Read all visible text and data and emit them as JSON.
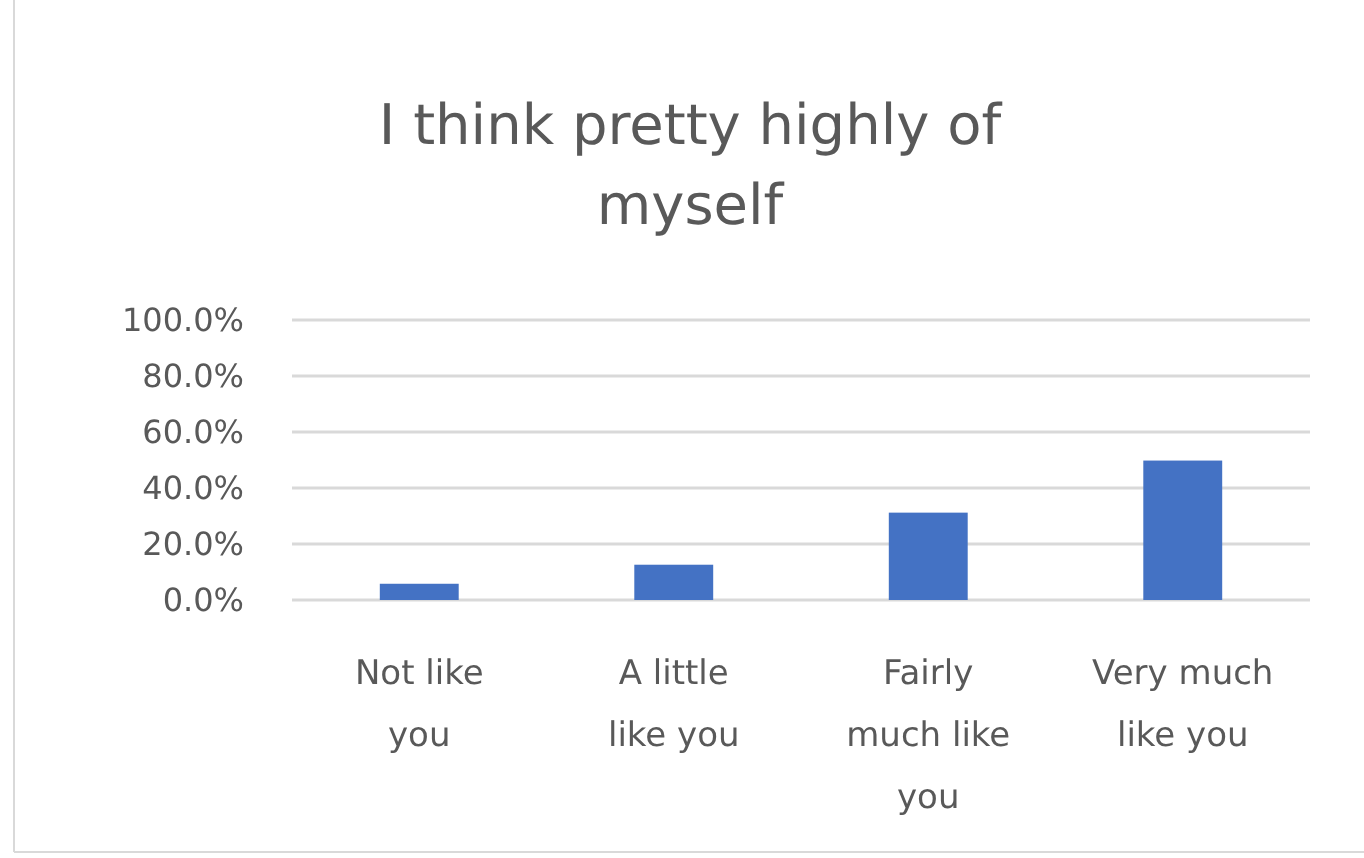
{
  "chart_data": {
    "type": "bar",
    "title": "I think pretty highly of myself",
    "categories": [
      "Not like you",
      "A little like you",
      "Fairly much like you",
      "Very much like you"
    ],
    "values": [
      5.8,
      12.6,
      31.2,
      49.8
    ],
    "color": "#4472c4",
    "ylim": [
      0,
      100
    ],
    "yticks": [
      {
        "value": 0,
        "label": "0.0%"
      },
      {
        "value": 20,
        "label": "20.0%"
      },
      {
        "value": 40,
        "label": "40.0%"
      },
      {
        "value": 60,
        "label": "60.0%"
      },
      {
        "value": 80,
        "label": "80.0%"
      },
      {
        "value": 100,
        "label": "100.0%"
      }
    ],
    "grid": "y"
  }
}
